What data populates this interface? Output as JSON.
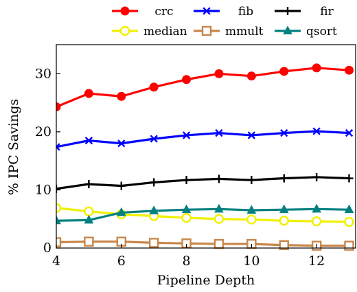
{
  "chart_data": {
    "type": "line",
    "title": "",
    "xlabel": "Pipeline Depth",
    "ylabel": "% IPC Savings",
    "xlim": [
      4,
      13.2
    ],
    "ylim": [
      0,
      35
    ],
    "xticks": [
      "4",
      "6",
      "8",
      "10",
      "12"
    ],
    "yticks": [
      "0",
      "10",
      "20",
      "30"
    ],
    "grid": false,
    "legend_position": "top",
    "x": [
      4,
      5,
      6,
      7,
      8,
      9,
      10,
      11,
      12,
      13
    ],
    "series": [
      {
        "name": "crc",
        "color": "#ff0000",
        "marker": "circle",
        "values": [
          24.3,
          26.6,
          26.1,
          27.7,
          29.0,
          30.0,
          29.6,
          30.4,
          31.0,
          30.6
        ]
      },
      {
        "name": "fib",
        "color": "#0000ff",
        "marker": "x",
        "values": [
          17.4,
          18.5,
          18.0,
          18.8,
          19.4,
          19.8,
          19.4,
          19.8,
          20.1,
          19.8
        ]
      },
      {
        "name": "fir",
        "color": "#000000",
        "marker": "plus",
        "values": [
          10.2,
          11.0,
          10.7,
          11.3,
          11.7,
          11.9,
          11.7,
          12.0,
          12.2,
          12.0
        ]
      },
      {
        "name": "median",
        "color": "#f0f000",
        "marker": "circle-open",
        "values": [
          6.9,
          6.3,
          5.8,
          5.5,
          5.2,
          5.0,
          4.9,
          4.7,
          4.6,
          4.5
        ]
      },
      {
        "name": "mmult",
        "color": "#c8864a",
        "marker": "square-open",
        "values": [
          1.0,
          1.1,
          1.1,
          0.9,
          0.8,
          0.7,
          0.7,
          0.5,
          0.4,
          0.4
        ]
      },
      {
        "name": "qsort",
        "color": "#008080",
        "marker": "triangle",
        "values": [
          4.7,
          4.8,
          6.1,
          6.4,
          6.6,
          6.7,
          6.5,
          6.6,
          6.7,
          6.6
        ]
      }
    ]
  }
}
